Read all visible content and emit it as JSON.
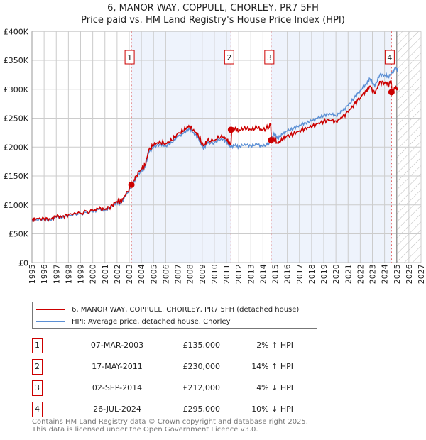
{
  "chart_data": {
    "type": "line",
    "title": "6, MANOR WAY, COPPULL, CHORLEY, PR7 5FH",
    "subtitle": "Price paid vs. HM Land Registry's House Price Index (HPI)",
    "xlim": [
      1995,
      2027
    ],
    "ylim": [
      0,
      400000
    ],
    "yticks": [
      0,
      50000,
      100000,
      150000,
      200000,
      250000,
      300000,
      350000,
      400000
    ],
    "ytick_labels": [
      "£0",
      "£50K",
      "£100K",
      "£150K",
      "£200K",
      "£250K",
      "£300K",
      "£350K",
      "£400K"
    ],
    "xticks": [
      "1995",
      "1996",
      "1997",
      "1998",
      "1999",
      "2000",
      "2001",
      "2002",
      "2003",
      "2004",
      "2005",
      "2006",
      "2007",
      "2008",
      "2009",
      "2010",
      "2011",
      "2012",
      "2013",
      "2014",
      "2015",
      "2016",
      "2017",
      "2018",
      "2019",
      "2020",
      "2021",
      "2022",
      "2023",
      "2024",
      "2025",
      "2026",
      "2027"
    ],
    "grid": true,
    "forecast_hatch_from": 2025.0,
    "series": [
      {
        "name": "6, MANOR WAY, COPPULL, CHORLEY, PR7 5FH (detached house)",
        "color": "#cc0000",
        "derived_from_hpi_with_sale_ratios": true
      },
      {
        "name": "HPI: Average price, detached house, Chorley",
        "color": "#5b8fd4",
        "x": [
          1995.0,
          1995.3,
          1996.0,
          1996.5,
          1997.0,
          1997.5,
          1998.0,
          1999.0,
          2000.0,
          2000.5,
          2001.0,
          2001.5,
          2002.0,
          2002.3,
          2002.7,
          2003.2,
          2003.5,
          2004.0,
          2004.3,
          2004.6,
          2005.0,
          2005.5,
          2006.0,
          2006.5,
          2007.0,
          2007.5,
          2007.9,
          2008.3,
          2008.7,
          2009.1,
          2009.4,
          2010.0,
          2010.6,
          2011.0,
          2011.3,
          2011.7,
          2012.0,
          2012.5,
          2013.0,
          2013.5,
          2014.0,
          2014.5,
          2014.9,
          2015.2,
          2015.6,
          2016.0,
          2016.5,
          2017.0,
          2017.5,
          2018.0,
          2018.5,
          2019.0,
          2019.5,
          2020.0,
          2020.5,
          2021.0,
          2021.5,
          2022.0,
          2022.5,
          2022.8,
          2023.2,
          2023.6,
          2024.0,
          2024.3,
          2024.6,
          2024.9,
          2025.1
        ],
        "y": [
          72000,
          75000,
          75000,
          73000,
          79000,
          78000,
          82000,
          85000,
          88000,
          92000,
          90000,
          96000,
          105000,
          103000,
          115000,
          132000,
          145000,
          160000,
          165000,
          190000,
          200000,
          205000,
          202000,
          208000,
          218000,
          225000,
          232000,
          225000,
          215000,
          197000,
          206000,
          208000,
          215000,
          210000,
          200000,
          203000,
          200000,
          205000,
          202000,
          205000,
          201000,
          206000,
          224000,
          215000,
          222000,
          228000,
          232000,
          238000,
          242000,
          245000,
          250000,
          255000,
          258000,
          254000,
          262000,
          272000,
          285000,
          298000,
          310000,
          318000,
          305000,
          325000,
          325000,
          322000,
          328000,
          337000,
          332000
        ]
      }
    ],
    "sales": [
      {
        "label": "1",
        "x": 2003.18,
        "date": "07-MAR-2003",
        "price": 135000,
        "price_label": "£135,000",
        "hpi_label": "2% ↑ HPI",
        "ratio": 1.02
      },
      {
        "label": "2",
        "x": 2011.37,
        "date": "17-MAY-2011",
        "price": 230000,
        "price_label": "£230,000",
        "hpi_label": "14% ↑ HPI",
        "ratio": 1.14
      },
      {
        "label": "3",
        "x": 2014.67,
        "date": "02-SEP-2014",
        "price": 212000,
        "price_label": "£212,000",
        "hpi_label": "4% ↓ HPI",
        "ratio": 0.96
      },
      {
        "label": "4",
        "x": 2024.57,
        "date": "26-JUL-2024",
        "price": 295000,
        "price_label": "£295,000",
        "hpi_label": "10% ↓ HPI",
        "ratio": 0.9
      }
    ]
  },
  "legend": {
    "property": "6, MANOR WAY, COPPULL, CHORLEY, PR7 5FH (detached house)",
    "hpi": "HPI: Average price, detached house, Chorley"
  },
  "footer": {
    "line1": "Contains HM Land Registry data © Crown copyright and database right 2025.",
    "line2": "This data is licensed under the Open Government Licence v3.0."
  }
}
